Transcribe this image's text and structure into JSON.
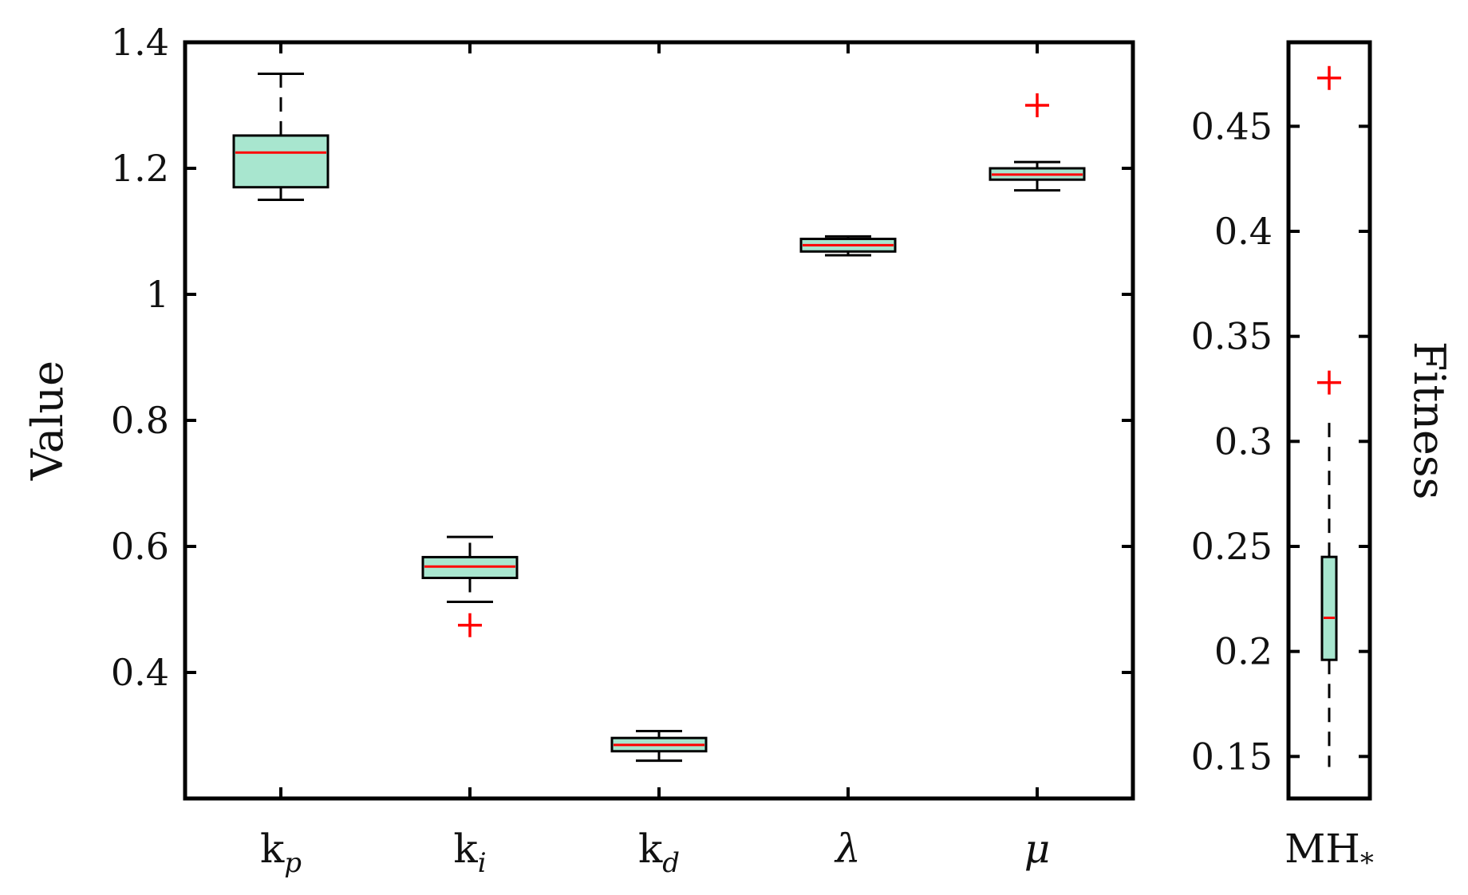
{
  "colors": {
    "box_fill": "#a8e6cf",
    "median": "#ff0000",
    "outlier": "#ff0000",
    "axis": "#000000"
  },
  "chart_data": [
    {
      "type": "box",
      "xlabel": "",
      "ylabel": "Value",
      "ylim": [
        0.2,
        1.4
      ],
      "yticks": [
        "0.4",
        "0.6",
        "0.8",
        "1",
        "1.2",
        "1.4"
      ],
      "yticks_values": [
        0.4,
        0.6,
        0.8,
        1.0,
        1.2,
        1.4
      ],
      "categories": [
        {
          "label": "k",
          "sub": "p",
          "italic": false
        },
        {
          "label": "k",
          "sub": "i",
          "italic": false
        },
        {
          "label": "k",
          "sub": "d",
          "italic": false
        },
        {
          "label": "λ",
          "sub": "",
          "italic": true
        },
        {
          "label": "μ",
          "sub": "",
          "italic": true
        }
      ],
      "boxes": [
        {
          "whisker_low": 1.15,
          "q1": 1.17,
          "median": 1.225,
          "q3": 1.252,
          "whisker_high": 1.35,
          "outliers": []
        },
        {
          "whisker_low": 0.512,
          "q1": 0.55,
          "median": 0.568,
          "q3": 0.583,
          "whisker_high": 0.615,
          "outliers": [
            0.475
          ]
        },
        {
          "whisker_low": 0.26,
          "q1": 0.275,
          "median": 0.285,
          "q3": 0.296,
          "whisker_high": 0.307,
          "outliers": []
        },
        {
          "whisker_low": 1.062,
          "q1": 1.068,
          "median": 1.078,
          "q3": 1.088,
          "whisker_high": 1.092,
          "outliers": []
        },
        {
          "whisker_low": 1.165,
          "q1": 1.182,
          "median": 1.19,
          "q3": 1.2,
          "whisker_high": 1.21,
          "outliers": [
            1.3
          ]
        }
      ]
    },
    {
      "type": "box",
      "xlabel": "",
      "ylabel": "Fitness",
      "ylim": [
        0.13,
        0.49
      ],
      "yticks": [
        "0.15",
        "0.2",
        "0.25",
        "0.3",
        "0.35",
        "0.4",
        "0.45"
      ],
      "yticks_values": [
        0.15,
        0.2,
        0.25,
        0.3,
        0.35,
        0.4,
        0.45
      ],
      "categories": [
        {
          "label": "MH",
          "sub": "*",
          "italic": false
        }
      ],
      "boxes": [
        {
          "whisker_low": 0.145,
          "q1": 0.196,
          "median": 0.216,
          "q3": 0.245,
          "whisker_high": 0.313,
          "outliers": [
            0.473,
            0.328
          ]
        }
      ]
    }
  ]
}
